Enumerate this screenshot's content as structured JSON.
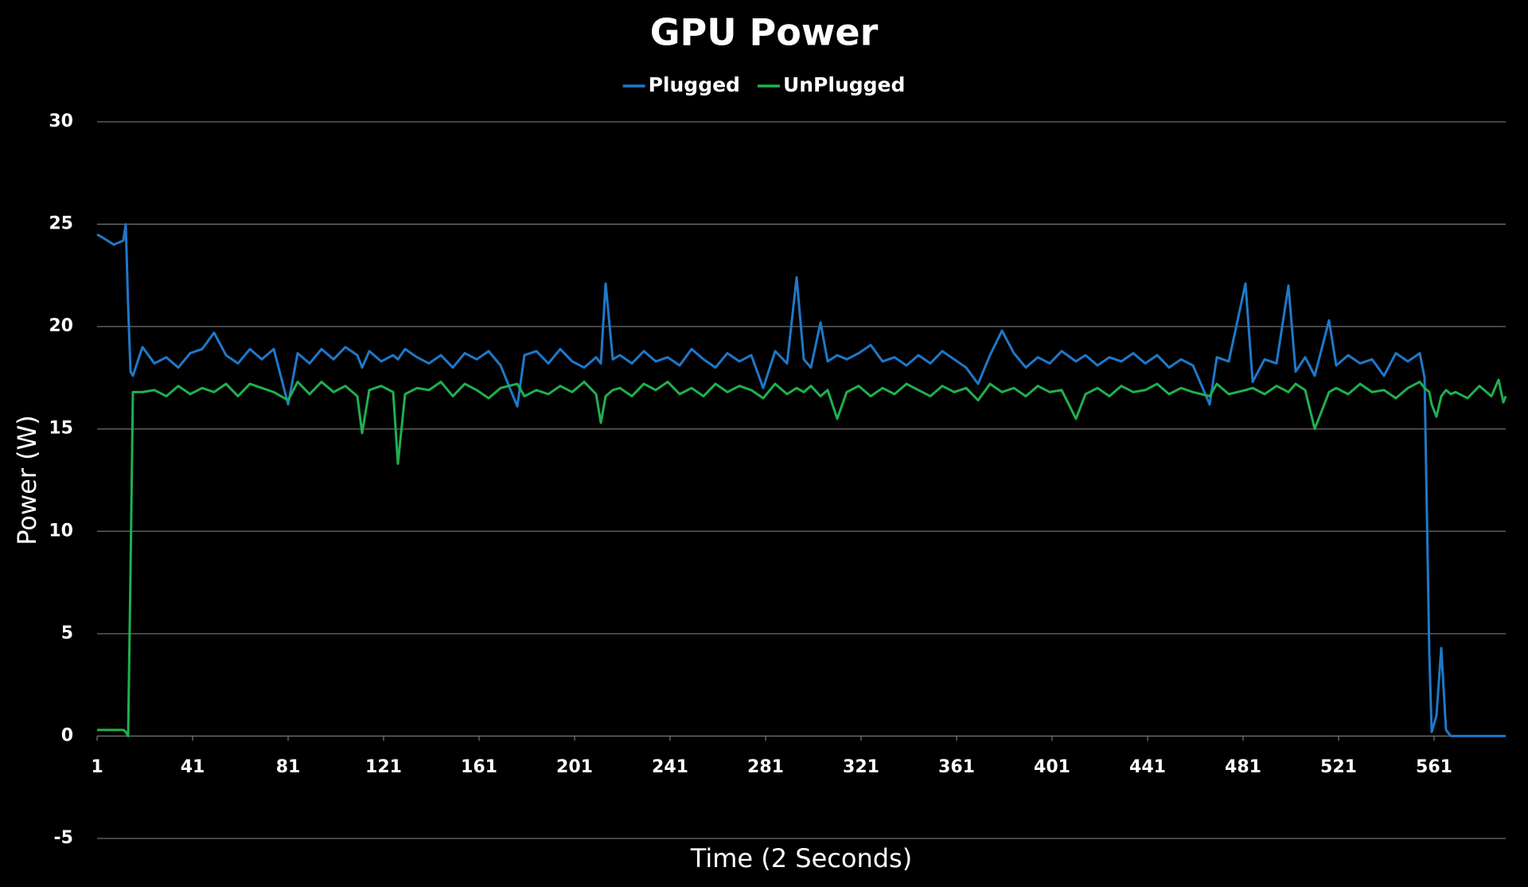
{
  "chart_data": {
    "type": "line",
    "title": "GPU Power",
    "x_label": "Time (2 Seconds)",
    "y_label": "Power (W)",
    "legend": "top",
    "grid": true,
    "xlim": [
      1,
      591
    ],
    "xticks": [
      1,
      41,
      81,
      121,
      161,
      201,
      241,
      281,
      321,
      361,
      401,
      441,
      481,
      521,
      561
    ],
    "ylim": [
      -5,
      30
    ],
    "yticks": [
      -5,
      0,
      5,
      10,
      15,
      20,
      25,
      30
    ],
    "x": [
      1,
      4,
      8,
      12,
      13,
      14,
      15,
      16,
      20,
      25,
      30,
      35,
      40,
      45,
      50,
      55,
      60,
      65,
      70,
      75,
      81,
      85,
      90,
      95,
      100,
      105,
      110,
      112,
      115,
      120,
      125,
      127,
      130,
      135,
      140,
      145,
      150,
      155,
      160,
      165,
      170,
      177,
      180,
      185,
      190,
      195,
      200,
      205,
      210,
      212,
      214,
      217,
      220,
      225,
      230,
      235,
      240,
      245,
      250,
      255,
      260,
      265,
      270,
      275,
      280,
      285,
      290,
      294,
      297,
      300,
      304,
      307,
      311,
      315,
      320,
      325,
      330,
      335,
      340,
      345,
      350,
      355,
      360,
      365,
      370,
      375,
      380,
      385,
      390,
      395,
      400,
      405,
      411,
      415,
      420,
      425,
      430,
      435,
      440,
      445,
      450,
      455,
      460,
      467,
      470,
      475,
      482,
      485,
      490,
      495,
      500,
      503,
      507,
      511,
      517,
      520,
      525,
      530,
      535,
      540,
      545,
      550,
      555,
      557,
      559,
      560,
      562,
      564,
      566,
      568,
      570,
      575,
      580,
      585,
      588,
      590,
      591
    ],
    "series": [
      {
        "name": "Plugged",
        "color": "#1f78c8",
        "values": [
          24.5,
          24.3,
          24.0,
          24.2,
          25.0,
          21.0,
          17.8,
          17.6,
          19.0,
          18.2,
          18.5,
          18.0,
          18.7,
          18.9,
          19.7,
          18.6,
          18.2,
          18.9,
          18.4,
          18.9,
          16.2,
          18.7,
          18.2,
          18.9,
          18.4,
          19.0,
          18.6,
          18.0,
          18.8,
          18.3,
          18.6,
          18.4,
          18.9,
          18.5,
          18.2,
          18.6,
          18.0,
          18.7,
          18.4,
          18.8,
          18.1,
          16.1,
          18.6,
          18.8,
          18.2,
          18.9,
          18.3,
          18.0,
          18.5,
          18.2,
          22.1,
          18.4,
          18.6,
          18.2,
          18.8,
          18.3,
          18.5,
          18.1,
          18.9,
          18.4,
          18.0,
          18.7,
          18.3,
          18.6,
          17.0,
          18.8,
          18.2,
          22.4,
          18.4,
          18.0,
          20.2,
          18.3,
          18.6,
          18.4,
          18.7,
          19.1,
          18.3,
          18.5,
          18.1,
          18.6,
          18.2,
          18.8,
          18.4,
          18.0,
          17.2,
          18.6,
          19.8,
          18.7,
          18.0,
          18.5,
          18.2,
          18.8,
          18.3,
          18.6,
          18.1,
          18.5,
          18.3,
          18.7,
          18.2,
          18.6,
          18.0,
          18.4,
          18.1,
          16.2,
          18.5,
          18.3,
          22.1,
          17.3,
          18.4,
          18.2,
          22.0,
          17.8,
          18.5,
          17.6,
          20.3,
          18.1,
          18.6,
          18.2,
          18.4,
          17.6,
          18.7,
          18.3,
          18.7,
          17.5,
          4.0,
          0.2,
          1.0,
          4.3,
          0.3,
          0.0,
          0.0,
          0.0,
          0.0,
          0.0,
          0.0,
          0.0,
          0.0
        ]
      },
      {
        "name": "UnPlugged",
        "color": "#1fb04e",
        "values": [
          0.3,
          0.3,
          0.3,
          0.3,
          0.2,
          0.0,
          8.0,
          16.8,
          16.8,
          16.9,
          16.6,
          17.1,
          16.7,
          17.0,
          16.8,
          17.2,
          16.6,
          17.2,
          17.0,
          16.8,
          16.4,
          17.3,
          16.7,
          17.3,
          16.8,
          17.1,
          16.6,
          14.8,
          16.9,
          17.1,
          16.8,
          13.3,
          16.7,
          17.0,
          16.9,
          17.3,
          16.6,
          17.2,
          16.9,
          16.5,
          17.0,
          17.2,
          16.6,
          16.9,
          16.7,
          17.1,
          16.8,
          17.3,
          16.7,
          15.3,
          16.6,
          16.9,
          17.0,
          16.6,
          17.2,
          16.9,
          17.3,
          16.7,
          17.0,
          16.6,
          17.2,
          16.8,
          17.1,
          16.9,
          16.5,
          17.2,
          16.7,
          17.0,
          16.8,
          17.1,
          16.6,
          16.9,
          15.5,
          16.8,
          17.1,
          16.6,
          17.0,
          16.7,
          17.2,
          16.9,
          16.6,
          17.1,
          16.8,
          17.0,
          16.4,
          17.2,
          16.8,
          17.0,
          16.6,
          17.1,
          16.8,
          16.9,
          15.5,
          16.7,
          17.0,
          16.6,
          17.1,
          16.8,
          16.9,
          17.2,
          16.7,
          17.0,
          16.8,
          16.6,
          17.2,
          16.7,
          16.9,
          17.0,
          16.7,
          17.1,
          16.8,
          17.2,
          16.9,
          15.0,
          16.8,
          17.0,
          16.7,
          17.2,
          16.8,
          16.9,
          16.5,
          17.0,
          17.3,
          17.0,
          16.8,
          16.2,
          15.6,
          16.6,
          16.9,
          16.7,
          16.8,
          16.5,
          17.1,
          16.6,
          17.4,
          16.3,
          16.6
        ]
      }
    ]
  }
}
